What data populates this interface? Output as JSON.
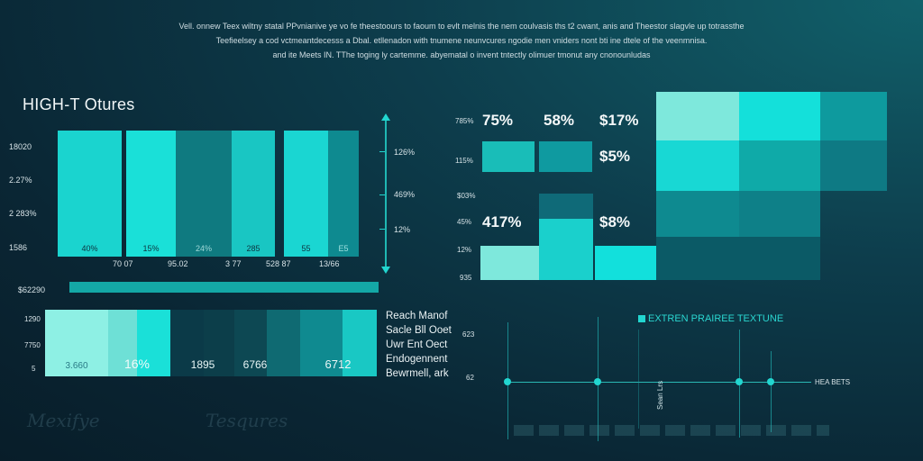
{
  "header": {
    "lines": [
      "Vell. onnew Teex wiltny statal PPvnianive ye vo fe theestoours to faoum to evlt melnis the nem coulvasis ths t2 cwant, anis and Theestor slagvle up totrassthe",
      "Teefieelsey a cod vctmeantdecesss a Dbal. etllenadon with tnumene neunvcures ngodie men vniders nont bti ine dtele of the veenmnisa.",
      "and ite Meets IN. TThe toging ly cartemme. abyematal o invent tntectly olimuer tmonut any cnonounludas"
    ]
  },
  "left_chart": {
    "title": "HIGH-T Otures",
    "y_labels": [
      "18020",
      "2.27%",
      "2 283%",
      "1586"
    ],
    "bars": [
      {
        "label": "40%",
        "color": "#1ad4cf"
      },
      {
        "label": "15%",
        "color": "#1ae0d8"
      },
      {
        "label": "24%",
        "color": "#0f7a80"
      },
      {
        "label": "285",
        "color": "#19c6c3"
      },
      {
        "label": "55",
        "color": "#1ad6d2"
      },
      {
        "label": "E5",
        "color": "#0e8a90"
      }
    ],
    "x_labels": [
      "70 07",
      "95.02",
      "3 77",
      "528 87",
      "13/66"
    ],
    "right_axis_labels": [
      "126%",
      "469%",
      "12%"
    ],
    "total_label": "$62290"
  },
  "stacked_bar": {
    "y_labels": [
      "1290",
      "7750",
      "5"
    ],
    "segments": [
      {
        "label": "3.660",
        "color": "#8ef0e4"
      },
      {
        "label": "",
        "color": "#6ee0d6"
      },
      {
        "label": "16%",
        "color": "#1ae0d8"
      },
      {
        "label": "1895",
        "color": "#0b3a48"
      },
      {
        "label": "",
        "color": "#0c3e4a"
      },
      {
        "label": "6766",
        "color": "#0d4853"
      },
      {
        "label": "",
        "color": "#0f6a72"
      },
      {
        "label": "6712",
        "color": "#0f8a90"
      },
      {
        "label": "",
        "color": "#19c8c4"
      }
    ],
    "legend": [
      "Reach Manof",
      "Sacle Bll Ooet",
      "Uwr Ent Oect",
      "Endogennent",
      "Bewrmell, ark"
    ]
  },
  "decor_text": [
    "Mexifye",
    "Tesqures"
  ],
  "right_chart": {
    "y_labels": [
      "785%",
      "115%",
      "$03%",
      "45%",
      "12%",
      "935"
    ],
    "values": [
      "75%",
      "58%",
      "$17%",
      "$5%",
      "417%",
      "$8%"
    ],
    "grid_colors": [
      "#7ee8dc",
      "#14e0da",
      "#0e9a9e",
      "#18d8d4",
      "#0faaa8",
      "#0e7a84",
      "#0e8a90",
      "#0e8088",
      "#0b5a66"
    ]
  },
  "timeline": {
    "title": "EXTREN PRAIREE TEXTUNE",
    "y_labels": [
      "623",
      "62"
    ],
    "axis_label": "HEA BETS",
    "vertical_label": "Sean Lrs"
  },
  "colors": {
    "accent": "#22d6d0",
    "background": "#0a2634"
  }
}
